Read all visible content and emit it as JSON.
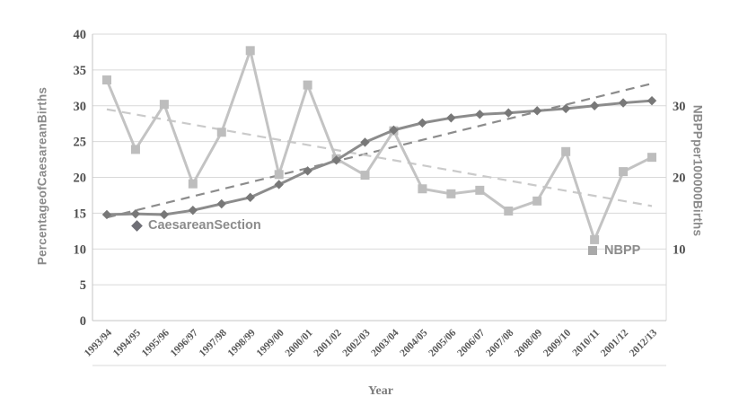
{
  "figure": {
    "legend": [
      {
        "label": "CaesareanSection",
        "marker": "diamond"
      },
      {
        "label": "NBPP",
        "marker": "square"
      }
    ]
  },
  "colors": {
    "gridline": "#d9d9d9",
    "axis_border": "#c4c4c4",
    "cs_line": "#8c8c8c",
    "cs_marker": "#787878",
    "cs_trend": "#8c8c8c",
    "nbpp_line": "#c3c3c3",
    "nbpp_marker": "#bdbdbd",
    "nbpp_trend": "#cacaca",
    "y_tick_text": "#4f4f4f",
    "x_tick_text": "#595959",
    "axis_title_text": "#8a8a8a"
  },
  "chart_data": {
    "type": "line",
    "title": "",
    "categories": [
      "1993/94",
      "1994/95",
      "1995/96",
      "1996/97",
      "1997/98",
      "1998/99",
      "1999/00",
      "2000/01",
      "2001/02",
      "2002/03",
      "2003/04",
      "2004/05",
      "2005/06",
      "2006/07",
      "2007/08",
      "2008/09",
      "2009/10",
      "2010/11",
      "2001/12",
      "2012/13"
    ],
    "series": [
      {
        "name": "CaesareanSection",
        "axis": "left",
        "marker": "diamond",
        "style": "solid",
        "values": [
          14.8,
          14.9,
          14.8,
          15.4,
          16.3,
          17.2,
          19.0,
          20.9,
          22.4,
          24.9,
          26.6,
          27.6,
          28.3,
          28.8,
          29.0,
          29.3,
          29.6,
          30.0,
          30.4,
          30.7
        ]
      },
      {
        "name": "NBPP",
        "axis": "right",
        "marker": "square",
        "style": "solid",
        "values": [
          33.6,
          23.9,
          30.2,
          19.1,
          26.3,
          37.7,
          20.4,
          32.9,
          22.6,
          20.3,
          26.5,
          18.4,
          17.7,
          18.2,
          15.3,
          16.7,
          23.6,
          11.3,
          20.8,
          22.8
        ]
      },
      {
        "name": "CaesareanSection-linear-trend",
        "axis": "left",
        "marker": "none",
        "style": "dashed",
        "trend_endpoints": [
          14.4,
          33.1
        ]
      },
      {
        "name": "NBPP-linear-trend",
        "axis": "right",
        "marker": "none",
        "style": "dashed",
        "trend_endpoints": [
          29.5,
          16.0
        ]
      }
    ],
    "left_axis": {
      "label": "PercentageofCaesareanBirths",
      "range": [
        0,
        40
      ],
      "ticks": [
        40,
        35,
        30,
        25,
        20,
        15,
        10,
        5,
        0
      ]
    },
    "right_axis": {
      "label": "NBPPper100000Births",
      "range": [
        0,
        40
      ],
      "ticks": [
        30,
        20,
        10
      ]
    },
    "xlabel": "Year",
    "grid": true,
    "legend_position": "inside-plot"
  }
}
